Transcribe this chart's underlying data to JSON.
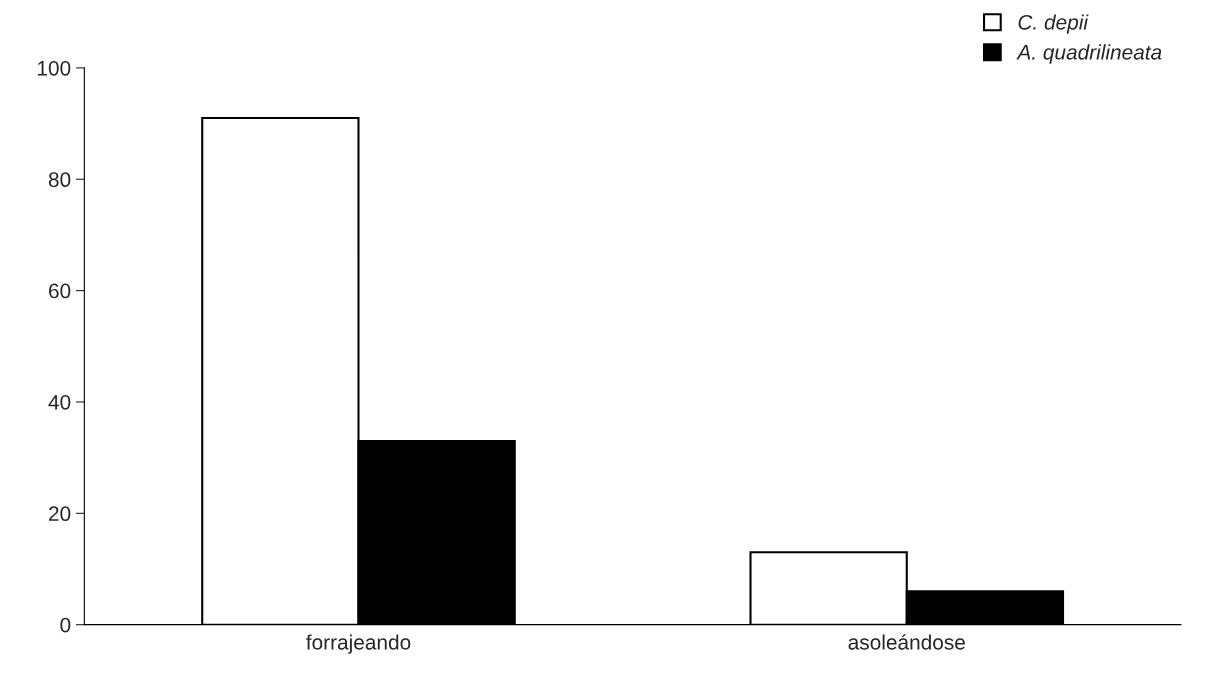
{
  "chart_data": {
    "type": "bar",
    "categories": [
      "forrajeando",
      "asoleándose"
    ],
    "series": [
      {
        "name": "C. depii",
        "color": "#ffffff",
        "values": [
          91,
          13
        ]
      },
      {
        "name": "A. quadrilineata",
        "color": "#000000",
        "values": [
          33,
          6
        ]
      }
    ],
    "ylim": [
      0,
      100
    ],
    "yticks": [
      0,
      20,
      40,
      60,
      80,
      100
    ],
    "grid": false,
    "legend": "top right"
  }
}
